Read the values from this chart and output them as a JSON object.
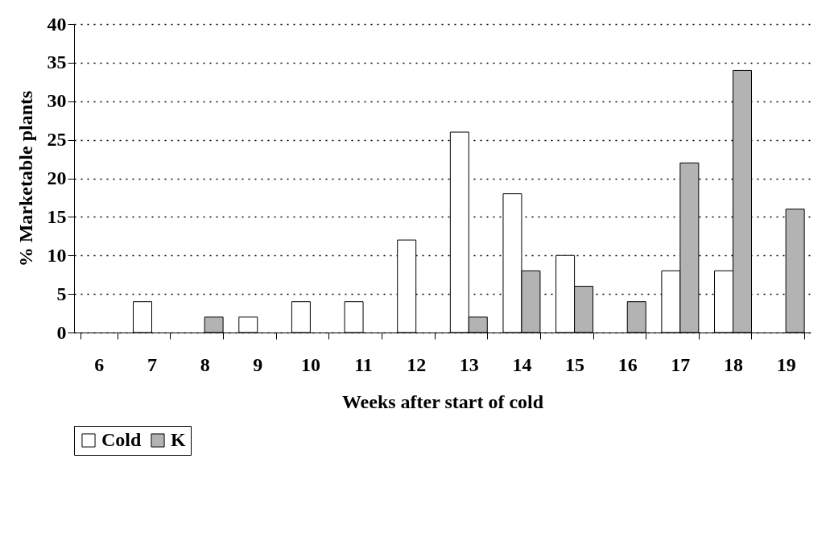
{
  "chart_data": {
    "type": "bar",
    "xlabel": "Weeks after start of cold",
    "ylabel": "% Marketable plants",
    "categories": [
      "6",
      "7",
      "8",
      "9",
      "10",
      "11",
      "12",
      "13",
      "14",
      "15",
      "16",
      "17",
      "18",
      "19"
    ],
    "series": [
      {
        "name": "Cold",
        "color": "#ffffff",
        "values": [
          0,
          4,
          0,
          2,
          4,
          4,
          12,
          26,
          18,
          10,
          0,
          8,
          8,
          0
        ]
      },
      {
        "name": "K",
        "color": "#b3b3b3",
        "values": [
          0,
          0,
          2,
          0,
          0,
          0,
          0,
          2,
          8,
          6,
          4,
          22,
          34,
          16
        ]
      }
    ],
    "ylim": [
      0,
      40
    ],
    "yticks": [
      0,
      5,
      10,
      15,
      20,
      25,
      30,
      35,
      40
    ],
    "grid": "y",
    "legend": "bottom"
  }
}
